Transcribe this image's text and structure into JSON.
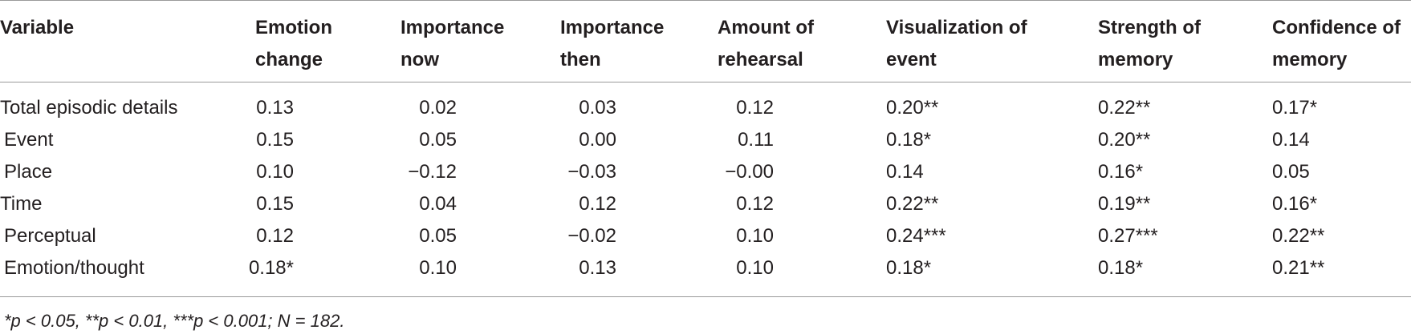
{
  "table": {
    "headers": [
      [
        "Variable",
        ""
      ],
      [
        "Emotion",
        "change"
      ],
      [
        "Importance",
        "now"
      ],
      [
        "Importance",
        "then"
      ],
      [
        "Amount of",
        "rehearsal"
      ],
      [
        "Visualization of",
        "event"
      ],
      [
        "Strength of",
        "memory"
      ],
      [
        "Confidence of",
        "memory"
      ]
    ],
    "rows": [
      {
        "label": "Total episodic details",
        "sub": false,
        "cells": [
          "0.13",
          "0.02",
          "0.03",
          "0.12",
          "0.20**",
          "0.22**",
          "0.17*"
        ]
      },
      {
        "label": "Event",
        "sub": true,
        "cells": [
          "0.15",
          "0.05",
          "0.00",
          "0.11",
          "0.18*",
          "0.20**",
          "0.14"
        ]
      },
      {
        "label": "Place",
        "sub": true,
        "cells": [
          "0.10",
          "−0.12",
          "−0.03",
          "−0.00",
          "0.14",
          "0.16*",
          "0.05"
        ]
      },
      {
        "label": "Time",
        "sub": false,
        "cells": [
          "0.15",
          "0.04",
          "0.12",
          "0.12",
          "0.22**",
          "0.19**",
          "0.16*"
        ]
      },
      {
        "label": "Perceptual",
        "sub": true,
        "cells": [
          "0.12",
          "0.05",
          "−0.02",
          "0.10",
          "0.24***",
          "0.27***",
          "0.22**"
        ]
      },
      {
        "label": "Emotion/thought",
        "sub": true,
        "cells": [
          "0.18*",
          "0.10",
          "0.13",
          "0.10",
          "0.18*",
          "0.18*",
          "0.21**"
        ]
      }
    ]
  },
  "footnote": "*p < 0.05, **p < 0.01, ***p < 0.001; N = 182."
}
